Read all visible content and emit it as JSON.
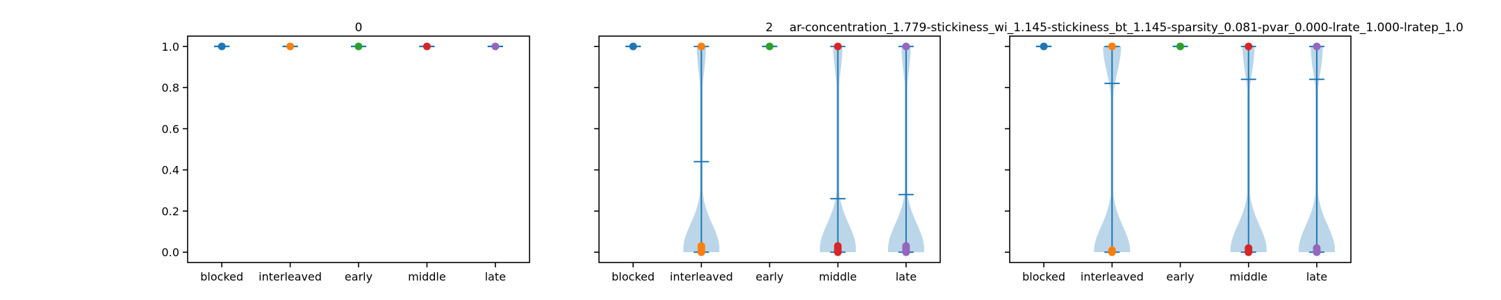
{
  "figure": {
    "titles": [
      "0",
      "2",
      "ar-concentration_1.779-stickiness_wi_1.145-stickiness_bt_1.145-sparsity_0.081-pvar_0.000-lrate_1.000-lratep_1.0"
    ]
  },
  "chart_data": [
    {
      "type": "violin",
      "title": "0",
      "categories": [
        "blocked",
        "interleaved",
        "early",
        "middle",
        "late"
      ],
      "ylim": [
        -0.05,
        1.05
      ],
      "yticks": [
        "0.0",
        "0.2",
        "0.4",
        "0.6",
        "0.8",
        "1.0"
      ],
      "point_colors": [
        "#1f77b4",
        "#ff7f0e",
        "#2ca02c",
        "#d62728",
        "#9467bd"
      ],
      "series": [
        {
          "category": "blocked",
          "mean": 1.0,
          "min": 1.0,
          "max": 1.0,
          "points": [
            1.0
          ]
        },
        {
          "category": "interleaved",
          "mean": 1.0,
          "min": 1.0,
          "max": 1.0,
          "points": [
            1.0
          ]
        },
        {
          "category": "early",
          "mean": 1.0,
          "min": 1.0,
          "max": 1.0,
          "points": [
            1.0
          ]
        },
        {
          "category": "middle",
          "mean": 1.0,
          "min": 1.0,
          "max": 1.0,
          "points": [
            1.0
          ]
        },
        {
          "category": "late",
          "mean": 1.0,
          "min": 1.0,
          "max": 1.0,
          "points": [
            1.0
          ]
        }
      ]
    },
    {
      "type": "violin",
      "title": "2",
      "categories": [
        "blocked",
        "interleaved",
        "early",
        "middle",
        "late"
      ],
      "ylim": [
        -0.05,
        1.05
      ],
      "yticks": [],
      "point_colors": [
        "#1f77b4",
        "#ff7f0e",
        "#2ca02c",
        "#d62728",
        "#9467bd"
      ],
      "series": [
        {
          "category": "blocked",
          "mean": 1.0,
          "min": 1.0,
          "max": 1.0,
          "points": [
            1.0
          ]
        },
        {
          "category": "interleaved",
          "mean": 0.44,
          "min": 0.0,
          "max": 1.0,
          "points": [
            0.0,
            0.01,
            0.02,
            0.03,
            1.0
          ]
        },
        {
          "category": "early",
          "mean": 1.0,
          "min": 1.0,
          "max": 1.0,
          "points": [
            1.0
          ]
        },
        {
          "category": "middle",
          "mean": 0.26,
          "min": 0.0,
          "max": 1.0,
          "points": [
            0.0,
            0.01,
            0.02,
            0.03,
            1.0
          ]
        },
        {
          "category": "late",
          "mean": 0.28,
          "min": 0.0,
          "max": 1.0,
          "points": [
            0.0,
            0.01,
            0.02,
            0.03,
            1.0
          ]
        }
      ]
    },
    {
      "type": "violin",
      "title": "",
      "categories": [
        "blocked",
        "interleaved",
        "early",
        "middle",
        "late"
      ],
      "ylim": [
        -0.05,
        1.05
      ],
      "yticks": [],
      "point_colors": [
        "#1f77b4",
        "#ff7f0e",
        "#2ca02c",
        "#d62728",
        "#9467bd"
      ],
      "series": [
        {
          "category": "blocked",
          "mean": 1.0,
          "min": 1.0,
          "max": 1.0,
          "points": [
            1.0
          ]
        },
        {
          "category": "interleaved",
          "mean": 0.82,
          "min": 0.0,
          "max": 1.0,
          "points": [
            0.0,
            0.01,
            1.0
          ]
        },
        {
          "category": "early",
          "mean": 1.0,
          "min": 1.0,
          "max": 1.0,
          "points": [
            1.0
          ]
        },
        {
          "category": "middle",
          "mean": 0.84,
          "min": 0.0,
          "max": 1.0,
          "points": [
            0.0,
            0.01,
            0.02,
            1.0
          ]
        },
        {
          "category": "late",
          "mean": 0.84,
          "min": 0.0,
          "max": 1.0,
          "points": [
            0.0,
            0.01,
            0.02,
            1.0
          ]
        }
      ]
    }
  ]
}
